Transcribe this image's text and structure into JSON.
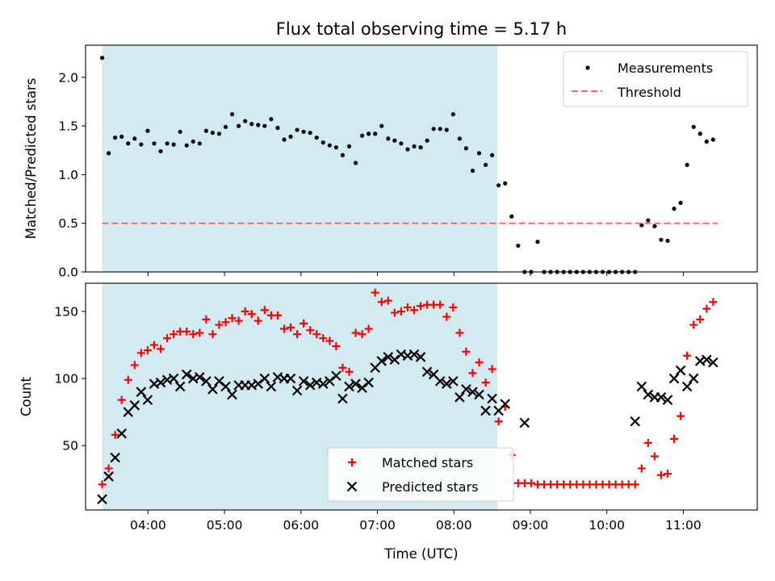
{
  "chart_data": {
    "title": "Flux total observing time = 5.17 h",
    "xlabel": "Time (UTC)",
    "xlim": [
      3.183,
      11.967
    ],
    "x_ticks": [
      4,
      5,
      6,
      7,
      8,
      9,
      10,
      11
    ],
    "x_tick_labels": [
      "04:00",
      "05:00",
      "06:00",
      "07:00",
      "08:00",
      "09:00",
      "10:00",
      "11:00"
    ],
    "shaded_span": [
      3.4,
      8.57
    ],
    "colors": {
      "shade": "#add8e6",
      "matched": "#ff0000",
      "predicted": "#000000",
      "threshold": "#ff6666",
      "measurements": "#000000"
    },
    "panels": [
      {
        "type": "scatter",
        "ylabel": "Matched/Predicted stars",
        "ylim": [
          0,
          2.33
        ],
        "y_ticks": [
          0,
          0.5,
          1,
          1.5,
          2
        ],
        "y_tick_labels": [
          "0.0",
          "0.5",
          "1.0",
          "1.5",
          "2.0"
        ],
        "legend_position": "top-right",
        "series": [
          {
            "name": "Measurements",
            "marker": "dot",
            "x": [
              3.4,
              3.485,
              3.57,
              3.655,
              3.74,
              3.825,
              3.91,
              3.995,
              4.08,
              4.165,
              4.25,
              4.335,
              4.42,
              4.505,
              4.59,
              4.675,
              4.76,
              4.845,
              4.93,
              5.015,
              5.1,
              5.185,
              5.27,
              5.355,
              5.44,
              5.525,
              5.61,
              5.695,
              5.78,
              5.865,
              5.95,
              6.035,
              6.12,
              6.205,
              6.29,
              6.375,
              6.46,
              6.545,
              6.63,
              6.715,
              6.8,
              6.885,
              6.97,
              7.055,
              7.14,
              7.225,
              7.31,
              7.395,
              7.48,
              7.565,
              7.65,
              7.735,
              7.82,
              7.905,
              7.99,
              8.075,
              8.16,
              8.245,
              8.33,
              8.415,
              8.5,
              8.585,
              8.67,
              8.755,
              8.84,
              8.925,
              9.01,
              9.095,
              9.18,
              9.265,
              9.35,
              9.435,
              9.52,
              9.605,
              9.69,
              9.775,
              9.86,
              9.945,
              10.03,
              10.115,
              10.2,
              10.285,
              10.37,
              10.455,
              10.54,
              10.625,
              10.71,
              10.795,
              10.88,
              10.965,
              11.05,
              11.135,
              11.22,
              11.305,
              11.39
            ],
            "y": [
              2.2,
              1.22,
              1.38,
              1.39,
              1.32,
              1.37,
              1.31,
              1.45,
              1.32,
              1.24,
              1.32,
              1.31,
              1.44,
              1.3,
              1.34,
              1.32,
              1.45,
              1.43,
              1.42,
              1.49,
              1.62,
              1.5,
              1.55,
              1.52,
              1.51,
              1.5,
              1.57,
              1.48,
              1.36,
              1.39,
              1.46,
              1.44,
              1.43,
              1.38,
              1.33,
              1.3,
              1.28,
              1.2,
              1.29,
              1.12,
              1.4,
              1.42,
              1.42,
              1.5,
              1.37,
              1.35,
              1.32,
              1.26,
              1.29,
              1.28,
              1.35,
              1.47,
              1.47,
              1.46,
              1.62,
              1.37,
              1.27,
              1.04,
              1.22,
              1.1,
              1.2,
              0.89,
              0.91,
              0.57,
              0.27,
              0,
              0,
              0.31,
              0,
              0,
              0,
              0,
              0,
              0,
              0,
              0,
              0,
              0,
              0,
              0,
              0,
              0,
              0,
              0.48,
              0.53,
              0.47,
              0.33,
              0.32,
              0.65,
              0.71,
              1.1,
              1.49,
              1.42,
              1.34,
              1.36
            ]
          },
          {
            "name": "Threshold",
            "type": "line",
            "style": "dashed",
            "x": [
              3.4,
              11.45
            ],
            "y": [
              0.5,
              0.5
            ]
          }
        ]
      },
      {
        "type": "scatter",
        "ylabel": "Count",
        "ylim": [
          2,
          171
        ],
        "y_ticks": [
          50,
          100,
          150
        ],
        "y_tick_labels": [
          "50",
          "100",
          "150"
        ],
        "legend_position": "bottom-center",
        "series": [
          {
            "name": "Matched stars",
            "marker": "plus",
            "x": [
              3.4,
              3.485,
              3.57,
              3.655,
              3.74,
              3.825,
              3.91,
              3.995,
              4.08,
              4.165,
              4.25,
              4.335,
              4.42,
              4.505,
              4.59,
              4.675,
              4.76,
              4.845,
              4.93,
              5.015,
              5.1,
              5.185,
              5.27,
              5.355,
              5.44,
              5.525,
              5.61,
              5.695,
              5.78,
              5.865,
              5.95,
              6.035,
              6.12,
              6.205,
              6.29,
              6.375,
              6.46,
              6.545,
              6.63,
              6.715,
              6.8,
              6.885,
              6.97,
              7.055,
              7.14,
              7.225,
              7.31,
              7.395,
              7.48,
              7.565,
              7.65,
              7.735,
              7.82,
              7.905,
              7.99,
              8.075,
              8.16,
              8.245,
              8.33,
              8.415,
              8.5,
              8.585,
              8.67,
              8.755,
              8.84,
              8.925,
              9.01,
              9.095,
              9.18,
              9.265,
              9.35,
              9.435,
              9.52,
              9.605,
              9.69,
              9.775,
              9.86,
              9.945,
              10.03,
              10.115,
              10.2,
              10.285,
              10.37,
              10.455,
              10.54,
              10.625,
              10.71,
              10.795,
              10.88,
              10.965,
              11.05,
              11.135,
              11.22,
              11.305,
              11.39
            ],
            "y": [
              21,
              33,
              58,
              84,
              99,
              110,
              119,
              121,
              125,
              122,
              130,
              133,
              135,
              135,
              133,
              134,
              144,
              133,
              140,
              142,
              145,
              143,
              150,
              148,
              143,
              151,
              147,
              147,
              137,
              138,
              133,
              141,
              136,
              133,
              130,
              128,
              124,
              108,
              105,
              134,
              133,
              137,
              164,
              157,
              158,
              149,
              150,
              153,
              151,
              154,
              155,
              155,
              155,
              146,
              153,
              134,
              120,
              104,
              112,
              97,
              107,
              68,
              79,
              43,
              22,
              22,
              22,
              21,
              21,
              21,
              21,
              21,
              21,
              21,
              21,
              21,
              21,
              21,
              21,
              21,
              21,
              21,
              21,
              33,
              52,
              42,
              28,
              29,
              55,
              72,
              117,
              140,
              144,
              152,
              157
            ]
          },
          {
            "name": "Predicted stars",
            "marker": "x",
            "x": [
              3.4,
              3.485,
              3.57,
              3.655,
              3.74,
              3.825,
              3.91,
              3.995,
              4.08,
              4.165,
              4.25,
              4.335,
              4.42,
              4.505,
              4.59,
              4.675,
              4.76,
              4.845,
              4.93,
              5.015,
              5.1,
              5.185,
              5.27,
              5.355,
              5.44,
              5.525,
              5.61,
              5.695,
              5.78,
              5.865,
              5.95,
              6.035,
              6.12,
              6.205,
              6.29,
              6.375,
              6.46,
              6.545,
              6.63,
              6.715,
              6.8,
              6.885,
              6.97,
              7.055,
              7.14,
              7.225,
              7.31,
              7.395,
              7.48,
              7.565,
              7.65,
              7.735,
              7.82,
              7.905,
              7.99,
              8.075,
              8.16,
              8.245,
              8.33,
              8.415,
              8.5,
              8.585,
              8.67,
              8.925,
              10.37,
              10.455,
              10.54,
              10.625,
              10.71,
              10.795,
              10.88,
              10.965,
              11.05,
              11.135,
              11.22,
              11.305,
              11.39
            ],
            "y": [
              10,
              27,
              41,
              59,
              75,
              80,
              90,
              84,
              96,
              97,
              99,
              100,
              94,
              103,
              100,
              101,
              98,
              92,
              98,
              94,
              88,
              95,
              95,
              95,
              96,
              100,
              94,
              101,
              100,
              100,
              91,
              98,
              95,
              97,
              96,
              98,
              102,
              85,
              94,
              96,
              93,
              97,
              108,
              113,
              116,
              114,
              118,
              117,
              118,
              116,
              105,
              103,
              98,
              96,
              98,
              86,
              92,
              90,
              88,
              76,
              85,
              76,
              81,
              67,
              68,
              94,
              88,
              86,
              86,
              84,
              100,
              106,
              94,
              100,
              113,
              114,
              112
            ]
          }
        ]
      }
    ]
  }
}
